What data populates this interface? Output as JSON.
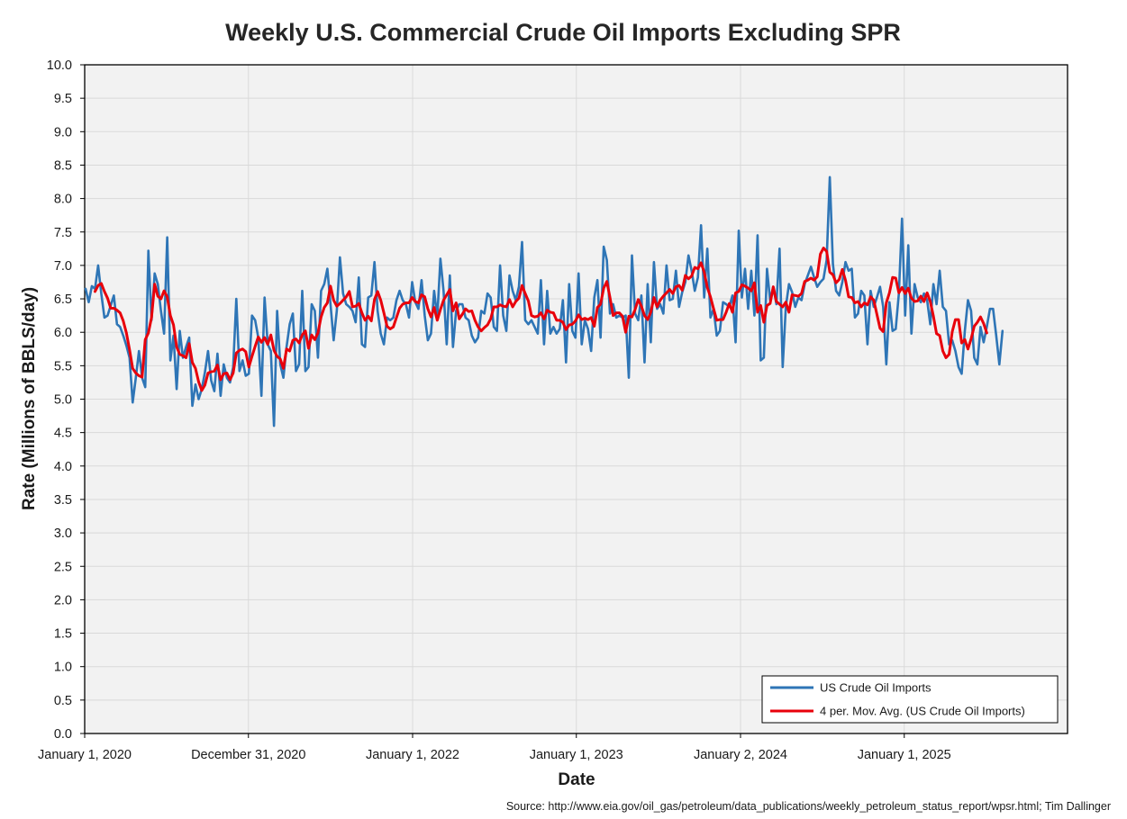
{
  "chart_data": {
    "type": "line",
    "title": "Weekly U.S. Commercial Crude Oil Imports Excluding SPR",
    "xlabel": "Date",
    "ylabel": "Rate (Millions of BBLS/day)",
    "ylim": [
      0,
      10
    ],
    "y_ticks": [
      "0.0",
      "0.5",
      "1.0",
      "1.5",
      "2.0",
      "2.5",
      "3.0",
      "3.5",
      "4.0",
      "4.5",
      "5.0",
      "5.5",
      "6.0",
      "6.5",
      "7.0",
      "7.5",
      "8.0",
      "8.5",
      "9.0",
      "9.5",
      "10.0"
    ],
    "xlim": [
      "2020-01-01",
      "2025-12-31"
    ],
    "x_ticks": [
      {
        "date": "2020-01-01",
        "label": "January 1, 2020"
      },
      {
        "date": "2020-12-31",
        "label": "December 31, 2020"
      },
      {
        "date": "2022-01-01",
        "label": "January 1, 2022"
      },
      {
        "date": "2023-01-01",
        "label": "January 1, 2023"
      },
      {
        "date": "2024-01-02",
        "label": "January 2, 2024"
      },
      {
        "date": "2025-01-01",
        "label": "January 1, 2025"
      }
    ],
    "grid": true,
    "legend_position": "bottom-right",
    "x_start": "2020-01-03",
    "x_step_days": 7,
    "series": [
      {
        "name": "US Crude Oil Imports",
        "color": "#2e75b6",
        "values": [
          6.65,
          6.45,
          6.69,
          6.65,
          7.0,
          6.58,
          6.22,
          6.25,
          6.4,
          6.55,
          6.12,
          6.08,
          5.95,
          5.8,
          5.62,
          4.95,
          5.32,
          5.72,
          5.32,
          5.18,
          7.22,
          6.18,
          6.88,
          6.72,
          6.32,
          5.98,
          7.42,
          5.58,
          5.95,
          5.15,
          6.02,
          5.62,
          5.78,
          5.92,
          4.9,
          5.22,
          5.0,
          5.15,
          5.4,
          5.72,
          5.28,
          5.12,
          5.68,
          5.05,
          5.52,
          5.32,
          5.25,
          5.48,
          6.5,
          5.42,
          5.58,
          5.35,
          5.38,
          6.25,
          6.18,
          5.92,
          5.05,
          6.52,
          5.82,
          5.72,
          4.6,
          6.32,
          5.52,
          5.32,
          5.78,
          6.12,
          6.28,
          5.42,
          5.52,
          6.62,
          5.42,
          5.48,
          6.42,
          6.32,
          5.62,
          6.62,
          6.72,
          6.95,
          6.42,
          5.88,
          6.32,
          7.12,
          6.58,
          6.42,
          6.38,
          6.32,
          6.15,
          6.82,
          5.82,
          5.78,
          6.52,
          6.55,
          7.05,
          6.32,
          5.98,
          5.82,
          6.22,
          6.18,
          6.22,
          6.48,
          6.62,
          6.48,
          6.42,
          6.22,
          6.75,
          6.45,
          6.35,
          6.78,
          6.25,
          5.88,
          5.98,
          6.62,
          6.22,
          7.1,
          6.62,
          5.82,
          6.85,
          5.78,
          6.32,
          6.42,
          6.42,
          6.22,
          6.18,
          5.95,
          5.85,
          5.92,
          6.32,
          6.28,
          6.58,
          6.52,
          6.08,
          6.02,
          7.0,
          6.25,
          6.02,
          6.85,
          6.62,
          6.48,
          6.68,
          7.35,
          6.18,
          6.12,
          6.18,
          6.08,
          5.98,
          6.78,
          5.82,
          6.62,
          5.98,
          6.08,
          5.98,
          6.05,
          6.48,
          5.55,
          6.72,
          6.02,
          5.92,
          6.88,
          5.82,
          6.18,
          6.05,
          5.72,
          6.52,
          6.78,
          5.92,
          7.28,
          7.08,
          6.28,
          6.42,
          6.22,
          6.25,
          6.22,
          6.25,
          5.32,
          7.15,
          6.28,
          6.18,
          6.55,
          5.55,
          6.72,
          5.85,
          7.05,
          6.35,
          6.42,
          6.28,
          7.0,
          6.48,
          6.5,
          6.92,
          6.38,
          6.6,
          6.75,
          7.15,
          6.92,
          6.62,
          6.82,
          7.6,
          6.52,
          7.25,
          6.22,
          6.35,
          5.95,
          6.02,
          6.45,
          6.42,
          6.38,
          6.55,
          5.85,
          7.52,
          6.52,
          6.95,
          6.35,
          6.92,
          6.25,
          7.45,
          5.58,
          5.62,
          6.95,
          6.48,
          6.68,
          6.42,
          7.25,
          5.48,
          6.38,
          6.72,
          6.6,
          6.38,
          6.52,
          6.48,
          6.72,
          6.85,
          6.98,
          6.82,
          6.68,
          6.75,
          6.8,
          7.08,
          8.32,
          7.02,
          6.62,
          6.55,
          6.75,
          7.05,
          6.92,
          6.95,
          6.22,
          6.28,
          6.62,
          6.55,
          5.82,
          6.62,
          6.38,
          6.52,
          6.68,
          6.38,
          5.52,
          6.45,
          6.02,
          6.05,
          6.58,
          7.7,
          6.25,
          7.3,
          5.98,
          6.72,
          6.52,
          6.45,
          6.58,
          6.48,
          6.12,
          6.72,
          6.42,
          6.92,
          6.38,
          6.32,
          5.82,
          5.88,
          5.72,
          5.48,
          5.38,
          6.02,
          6.48,
          6.32,
          5.62,
          5.52,
          6.08,
          5.85,
          6.08,
          6.35,
          6.35,
          5.95,
          5.52,
          6.02
        ]
      },
      {
        "name": "4 per. Mov. Avg. (US Crude Oil Imports)",
        "color": "#e8000b",
        "moving_average_window": 4,
        "values": [
          null,
          null,
          null,
          6.61,
          6.7,
          6.73,
          6.61,
          6.51,
          6.36,
          6.36,
          6.33,
          6.29,
          6.17,
          5.99,
          5.74,
          5.46,
          5.39,
          5.35,
          5.33,
          5.89,
          5.99,
          6.22,
          6.72,
          6.54,
          6.5,
          6.62,
          6.53,
          6.25,
          6.11,
          5.78,
          5.67,
          5.65,
          5.62,
          5.83,
          5.55,
          5.46,
          5.26,
          5.13,
          5.21,
          5.39,
          5.41,
          5.42,
          5.51,
          5.29,
          5.38,
          5.39,
          5.29,
          5.39,
          5.69,
          5.73,
          5.75,
          5.71,
          5.48,
          5.64,
          5.79,
          5.93,
          5.85,
          5.92,
          5.82,
          5.96,
          5.73,
          5.64,
          5.6,
          5.46,
          5.75,
          5.72,
          5.88,
          5.9,
          5.84,
          5.96,
          6.02,
          5.76,
          5.96,
          5.89,
          5.99,
          6.23,
          6.37,
          6.44,
          6.69,
          6.48,
          6.39,
          6.43,
          6.48,
          6.53,
          6.61,
          6.38,
          6.39,
          6.43,
          6.29,
          6.18,
          6.24,
          6.17,
          6.49,
          6.61,
          6.48,
          6.29,
          6.09,
          6.05,
          6.08,
          6.22,
          6.36,
          6.42,
          6.44,
          6.44,
          6.52,
          6.46,
          6.44,
          6.56,
          6.53,
          6.35,
          6.23,
          6.37,
          6.18,
          6.34,
          6.48,
          6.56,
          6.64,
          6.32,
          6.44,
          6.2,
          6.27,
          6.35,
          6.31,
          6.32,
          6.18,
          6.08,
          6.02,
          6.07,
          6.11,
          6.2,
          6.38,
          6.38,
          6.41,
          6.39,
          6.38,
          6.49,
          6.38,
          6.46,
          6.51,
          6.7,
          6.58,
          6.47,
          6.25,
          6.23,
          6.24,
          6.29,
          6.2,
          6.33,
          6.3,
          6.29,
          6.18,
          6.18,
          6.15,
          6.04,
          6.11,
          6.12,
          6.17,
          6.26,
          6.19,
          6.21,
          6.19,
          6.22,
          6.09,
          6.37,
          6.42,
          6.66,
          6.76,
          6.52,
          6.25,
          6.29,
          6.29,
          6.24,
          6.0,
          6.24,
          6.23,
          6.34,
          6.49,
          6.39,
          6.25,
          6.19,
          6.3,
          6.52,
          6.38,
          6.48,
          6.54,
          6.59,
          6.64,
          6.58,
          6.68,
          6.7,
          6.63,
          6.85,
          6.8,
          6.84,
          6.97,
          6.95,
          7.04,
          6.9,
          6.67,
          6.53,
          6.35,
          6.18,
          6.19,
          6.19,
          6.3,
          6.43,
          6.3,
          6.59,
          6.61,
          6.71,
          6.69,
          6.66,
          6.62,
          6.74,
          6.3,
          6.4,
          6.15,
          6.4,
          6.43,
          6.68,
          6.46,
          6.42,
          6.38,
          6.45,
          6.3,
          6.56,
          6.55,
          6.54,
          6.58,
          6.76,
          6.78,
          6.81,
          6.78,
          6.83,
          7.17,
          7.26,
          7.21,
          6.9,
          6.86,
          6.74,
          6.79,
          6.94,
          6.78,
          6.53,
          6.52,
          6.44,
          6.46,
          6.38,
          6.44,
          6.41,
          6.53,
          6.48,
          6.27,
          6.06,
          6.01,
          6.44,
          6.59,
          6.82,
          6.81,
          6.59,
          6.67,
          6.58,
          6.66,
          6.51,
          6.46,
          6.47,
          6.54,
          6.46,
          6.59,
          6.46,
          6.24,
          5.98,
          5.95,
          5.72,
          5.62,
          5.67,
          6.01,
          6.19,
          6.19,
          5.84,
          5.89,
          5.75,
          5.9,
          6.09,
          6.15,
          6.23,
          6.13,
          5.99
        ]
      }
    ]
  },
  "source": "Source: http://www.eia.gov/oil_gas/petroleum/data_publications/weekly_petroleum_status_report/wpsr.html; Tim Dallinger"
}
